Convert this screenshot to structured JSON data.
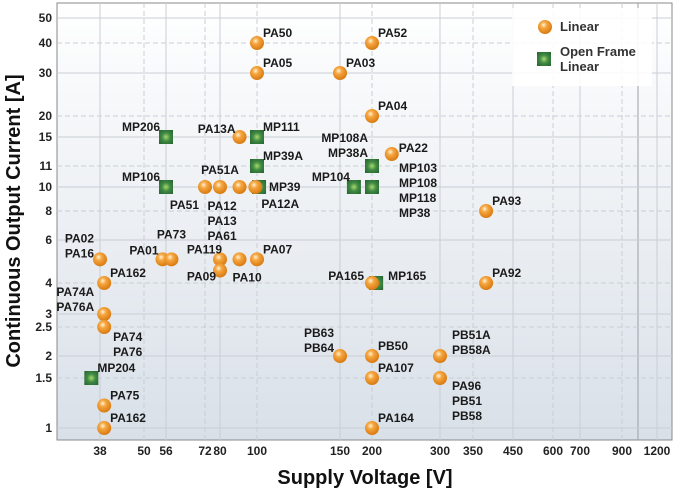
{
  "chart_data": {
    "type": "scatter",
    "xlabel": "Supply Voltage [V]",
    "ylabel": "Continuous Output Current [A]",
    "x_scale": "log",
    "y_scale": "log",
    "grid": true,
    "legend_placement": "top-right",
    "x_ticks": [
      38,
      50,
      56,
      72,
      80,
      100,
      150,
      200,
      300,
      350,
      450,
      600,
      700,
      900,
      1200
    ],
    "y_ticks": [
      1,
      1.5,
      2,
      2.5,
      3,
      4,
      6,
      8,
      10,
      11,
      15,
      20,
      30,
      40,
      50
    ],
    "series": [
      {
        "name": "Linear",
        "marker": "sphere",
        "color": "#f39a2a"
      },
      {
        "name": "Open Frame Linear",
        "marker": "square",
        "color": "#3f8a45"
      }
    ],
    "legend": [
      "Linear",
      "Open Frame Linear"
    ],
    "points": [
      {
        "labels": [
          "PA50"
        ],
        "x": 100,
        "y": 40,
        "series": 0
      },
      {
        "labels": [
          "PA05"
        ],
        "x": 100,
        "y": 30,
        "series": 0
      },
      {
        "labels": [
          "PA52"
        ],
        "x": 200,
        "y": 40,
        "series": 0
      },
      {
        "labels": [
          "PA03"
        ],
        "x": 150,
        "y": 30,
        "series": 0
      },
      {
        "labels": [
          "PA04"
        ],
        "x": 200,
        "y": 20,
        "series": 0
      },
      {
        "labels": [
          "PA22"
        ],
        "x": 225,
        "y": 12.5,
        "series": 0
      },
      {
        "labels": [
          "PA13A"
        ],
        "x": 90,
        "y": 15,
        "series": 0
      },
      {
        "labels": [
          "MP206"
        ],
        "x": 56,
        "y": 15,
        "series": 1
      },
      {
        "labels": [
          "MP111"
        ],
        "x": 100,
        "y": 15,
        "series": 1
      },
      {
        "labels": [
          "MP39A"
        ],
        "x": 100,
        "y": 11,
        "series": 1
      },
      {
        "labels": [
          "MP106"
        ],
        "x": 56,
        "y": 10,
        "series": 1
      },
      {
        "labels": [
          "PA51"
        ],
        "x": 72,
        "y": 10,
        "series": 0
      },
      {
        "labels": [
          "PA51A"
        ],
        "x": 80,
        "y": 10,
        "series": 0
      },
      {
        "labels": [
          "PA12",
          "PA13",
          "PA61"
        ],
        "x": 90,
        "y": 10,
        "series": 0
      },
      {
        "labels": [
          "MP39"
        ],
        "x": 101,
        "y": 10,
        "series": 1
      },
      {
        "labels": [
          "PA12A"
        ],
        "x": 99,
        "y": 10,
        "series": 0
      },
      {
        "labels": [
          "MP108A",
          "MP38A"
        ],
        "x": 200,
        "y": 11,
        "series": 1
      },
      {
        "labels": [
          "MP104"
        ],
        "x": 170,
        "y": 10,
        "series": 1
      },
      {
        "labels": [
          "MP103",
          "MP108",
          "MP118",
          "MP38"
        ],
        "x": 200,
        "y": 10,
        "series": 1
      },
      {
        "labels": [
          "PA93"
        ],
        "x": 380,
        "y": 8,
        "series": 0
      },
      {
        "labels": [
          "PA92"
        ],
        "x": 380,
        "y": 4,
        "series": 0
      },
      {
        "labels": [
          "PA02",
          "PA16"
        ],
        "x": 38,
        "y": 5,
        "series": 0
      },
      {
        "labels": [
          "PA01"
        ],
        "x": 55,
        "y": 5,
        "series": 0
      },
      {
        "labels": [
          "PA73"
        ],
        "x": 58,
        "y": 5,
        "series": 0
      },
      {
        "labels": [
          "PA119"
        ],
        "x": 80,
        "y": 5,
        "series": 0
      },
      {
        "labels": [
          "PA10"
        ],
        "x": 90,
        "y": 5,
        "series": 0
      },
      {
        "labels": [
          "PA09"
        ],
        "x": 80,
        "y": 4.5,
        "series": 0
      },
      {
        "labels": [
          "PA07"
        ],
        "x": 100,
        "y": 5,
        "series": 0
      },
      {
        "labels": [
          "PA162"
        ],
        "x": 39,
        "y": 4,
        "series": 0
      },
      {
        "labels": [
          "PA74A",
          "PA76A"
        ],
        "x": 39,
        "y": 3,
        "series": 0
      },
      {
        "labels": [
          "PA74",
          "PA76"
        ],
        "x": 39,
        "y": 2.5,
        "series": 0
      },
      {
        "labels": [
          "MP204"
        ],
        "x": 36,
        "y": 1.5,
        "series": 1
      },
      {
        "labels": [
          "PA75"
        ],
        "x": 39,
        "y": 1.2,
        "series": 0
      },
      {
        "labels": [
          "PA162"
        ],
        "x": 39,
        "y": 1,
        "series": 0
      },
      {
        "labels": [
          "PB63",
          "PB64"
        ],
        "x": 150,
        "y": 2,
        "series": 0
      },
      {
        "labels": [
          "PB50"
        ],
        "x": 200,
        "y": 2,
        "series": 0
      },
      {
        "labels": [
          "PA107"
        ],
        "x": 200,
        "y": 1.5,
        "series": 0
      },
      {
        "labels": [
          "PA164"
        ],
        "x": 200,
        "y": 1,
        "series": 0
      },
      {
        "labels": [
          "PB51A",
          "PB58A"
        ],
        "x": 300,
        "y": 2,
        "series": 0
      },
      {
        "labels": [
          "PA96",
          "PB51",
          "PB58"
        ],
        "x": 300,
        "y": 1.5,
        "series": 0
      },
      {
        "labels": [
          "MP165"
        ],
        "x": 205,
        "y": 4,
        "series": 1
      },
      {
        "labels": [
          "PA165"
        ],
        "x": 200,
        "y": 4,
        "series": 0
      }
    ]
  }
}
